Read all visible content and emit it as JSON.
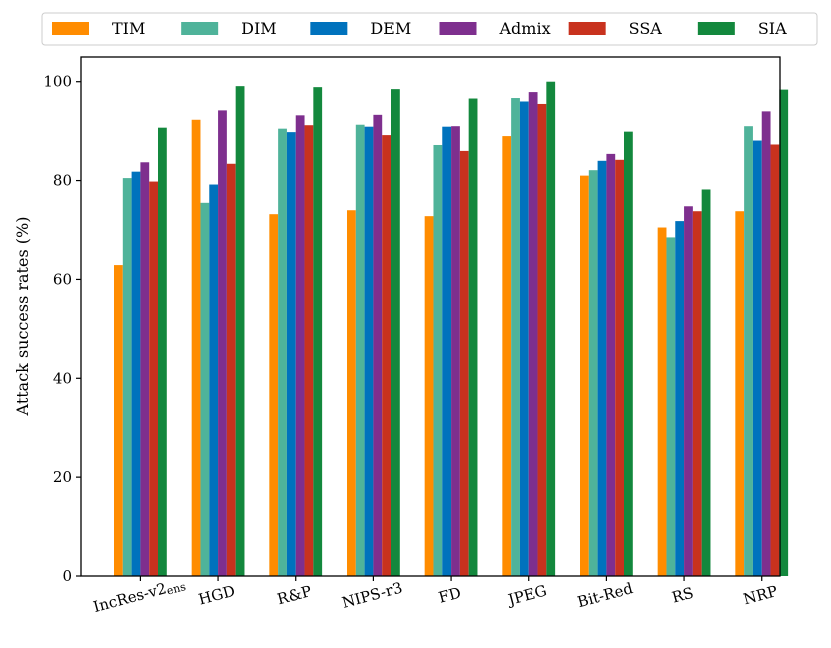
{
  "chart_data": {
    "type": "bar",
    "title": "",
    "xlabel": "",
    "ylabel": "Attack success rates (%)",
    "ylim": [
      0,
      105
    ],
    "yticks": [
      0,
      20,
      40,
      60,
      80,
      100
    ],
    "grid": false,
    "legend_position": "top (outside, single row)",
    "categories": [
      {
        "main": "IncRes-v2",
        "sub": "ens"
      },
      {
        "main": "HGD",
        "sub": ""
      },
      {
        "main": "R&P",
        "sub": ""
      },
      {
        "main": "NIPS-r3",
        "sub": ""
      },
      {
        "main": "FD",
        "sub": ""
      },
      {
        "main": "JPEG",
        "sub": ""
      },
      {
        "main": "Bit-Red",
        "sub": ""
      },
      {
        "main": "RS",
        "sub": ""
      },
      {
        "main": "NRP",
        "sub": ""
      }
    ],
    "series": [
      {
        "name": "TIM",
        "color": "#ff8c00",
        "values": [
          62.9,
          92.3,
          73.2,
          74.0,
          72.8,
          89.0,
          81.0,
          70.5,
          73.8
        ]
      },
      {
        "name": "DIM",
        "color": "#4fb39a",
        "values": [
          80.5,
          75.5,
          90.5,
          91.3,
          87.2,
          96.7,
          82.1,
          68.5,
          91.0
        ]
      },
      {
        "name": "DEM",
        "color": "#0072bd",
        "values": [
          81.8,
          79.2,
          89.8,
          90.9,
          90.9,
          96.0,
          84.0,
          71.8,
          88.1
        ]
      },
      {
        "name": "Admix",
        "color": "#7e2f8e",
        "values": [
          83.7,
          94.2,
          93.2,
          93.3,
          91.0,
          97.9,
          85.4,
          74.8,
          94.0
        ]
      },
      {
        "name": "SSA",
        "color": "#c8321e",
        "values": [
          79.8,
          83.4,
          91.2,
          89.2,
          86.0,
          95.5,
          84.2,
          73.8,
          87.3
        ]
      },
      {
        "name": "SIA",
        "color": "#13883d",
        "values": [
          90.7,
          99.1,
          98.9,
          98.5,
          96.6,
          100.0,
          89.9,
          78.2,
          98.4
        ]
      }
    ]
  }
}
